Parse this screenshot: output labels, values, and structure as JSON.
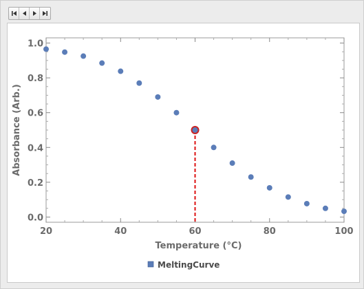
{
  "controls": {
    "buttons": [
      {
        "name": "first-frame-button",
        "icon": "skip-to-start-icon"
      },
      {
        "name": "step-back-button",
        "icon": "step-back-icon"
      },
      {
        "name": "step-forward-button",
        "icon": "step-forward-icon"
      },
      {
        "name": "last-frame-button",
        "icon": "skip-to-end-icon"
      }
    ]
  },
  "chart_data": {
    "type": "scatter",
    "xlabel": "Temperature  (°C)",
    "ylabel": "Absorbance  (Arb.)",
    "xlim": [
      20,
      100
    ],
    "ylim": [
      -0.03,
      1.03
    ],
    "x_ticks": [
      20,
      40,
      60,
      80,
      100
    ],
    "x_tick_labels": [
      "20",
      "40",
      "60",
      "80",
      "100"
    ],
    "y_ticks": [
      0.0,
      0.2,
      0.4,
      0.6,
      0.8,
      1.0
    ],
    "y_tick_labels": [
      "0.0",
      "0.2",
      "0.4",
      "0.6",
      "0.8",
      "1.0"
    ],
    "grid": false,
    "legend_position": "bottom-center",
    "series": [
      {
        "name": "MeltingCurve",
        "color": "#5b7db8",
        "x": [
          20,
          25,
          30,
          35,
          40,
          45,
          50,
          55,
          60,
          65,
          70,
          75,
          80,
          85,
          90,
          95,
          100
        ],
        "y": [
          0.965,
          0.948,
          0.925,
          0.885,
          0.838,
          0.77,
          0.69,
          0.6,
          0.5,
          0.4,
          0.31,
          0.23,
          0.168,
          0.115,
          0.077,
          0.05,
          0.033
        ]
      }
    ],
    "highlight": {
      "x": 60,
      "y": 0.5,
      "marker_color": "#cc2222",
      "dropline_color": "#dd1111"
    }
  }
}
